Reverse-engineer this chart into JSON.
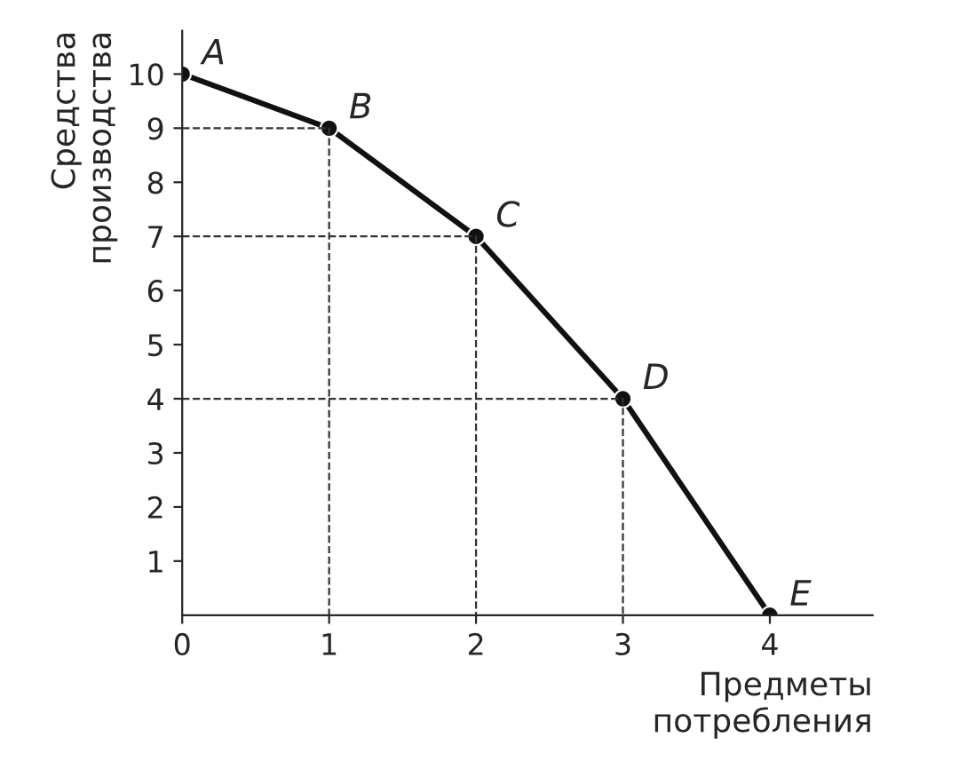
{
  "chart_data": {
    "type": "line",
    "x": [
      0,
      1,
      2,
      3,
      4
    ],
    "series": [
      {
        "color": "#111111",
        "values": [
          10,
          9,
          7,
          4,
          0
        ]
      },
      {
        "color": "#333333",
        "x": [
          0,
          1,
          1
        ],
        "values": [
          9,
          9,
          0
        ],
        "line_style": "dashed",
        "marker": "none"
      },
      {
        "color": "#333333",
        "x": [
          0,
          2,
          2
        ],
        "values": [
          7,
          7,
          0
        ],
        "line_style": "dashed",
        "marker": "none"
      },
      {
        "color": "#333333",
        "x": [
          0,
          3,
          3
        ],
        "values": [
          4,
          4,
          0
        ],
        "line_style": "dashed",
        "marker": "none"
      }
    ],
    "xlabel": "Предметы\nпотребления",
    "ylabel": "Средства\nпроизводства",
    "xlim": [
      0,
      4.7
    ],
    "ylim": [
      0,
      10.8
    ],
    "xticks": [
      0,
      1,
      2,
      3,
      4
    ],
    "yticks": [
      1,
      2,
      3,
      4,
      5,
      6,
      7,
      8,
      9,
      10
    ],
    "marker": "circle",
    "line_style": "solid",
    "annotations": [
      {
        "text": "A",
        "x": 0,
        "y": 10
      },
      {
        "text": "B",
        "x": 1,
        "y": 9
      },
      {
        "text": "C",
        "x": 2,
        "y": 7
      },
      {
        "text": "D",
        "x": 3,
        "y": 4
      },
      {
        "text": "E",
        "x": 4,
        "y": 0
      }
    ]
  }
}
